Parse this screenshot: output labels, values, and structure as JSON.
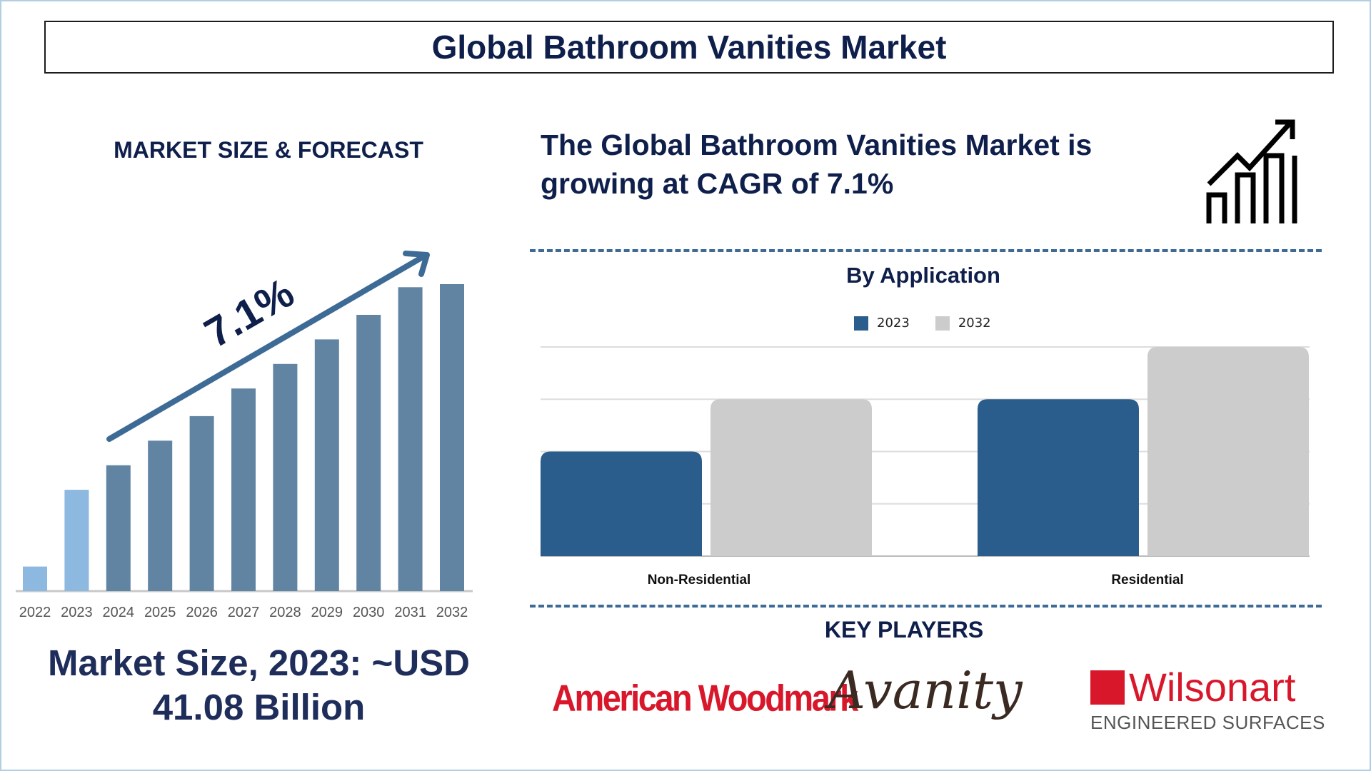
{
  "title": "Global Bathroom Vanities Market",
  "left": {
    "section_title": "MARKET SIZE & FORECAST",
    "cagr_label": "7.1%",
    "market_size_line1": "Market Size, 2023: ~USD",
    "market_size_line2": "41.08 Billion"
  },
  "right": {
    "headline_line1": "The Global Bathroom Vanities Market is",
    "headline_line2": "growing at CAGR of 7.1%",
    "key_players_title": "KEY PLAYERS",
    "key_players": [
      {
        "name": "American Woodmark"
      },
      {
        "name": "Avanity"
      },
      {
        "name": "Wilsonart",
        "tagline": "ENGINEERED SURFACES"
      }
    ]
  },
  "colors": {
    "navy": "#0f1f4b",
    "bar_hist": "#8db8df",
    "bar_forecast": "#6284a3",
    "arrow": "#3d6b96",
    "series_2023": "#2a5d8c",
    "series_2032": "#cccccc"
  },
  "chart_data": [
    {
      "type": "bar",
      "title": "MARKET SIZE & FORECAST",
      "categories": [
        "2022",
        "2023",
        "2024",
        "2025",
        "2026",
        "2027",
        "2028",
        "2029",
        "2030",
        "2031",
        "2032"
      ],
      "values": [
        8,
        33,
        41,
        49,
        57,
        66,
        74,
        82,
        90,
        99,
        100
      ],
      "value_units": "relative index (unlabeled axis)",
      "historical": [
        "2022",
        "2023"
      ],
      "annotation": "7.1%",
      "ylim": [
        0,
        100
      ]
    },
    {
      "type": "bar",
      "title": "By Application",
      "categories": [
        "Non-Residential",
        "Residential"
      ],
      "series": [
        {
          "name": "2023",
          "values": [
            2,
            3
          ]
        },
        {
          "name": "2032",
          "values": [
            3,
            4
          ]
        }
      ],
      "ylim": [
        0,
        4
      ],
      "grid": true,
      "legend": "top-center"
    }
  ]
}
